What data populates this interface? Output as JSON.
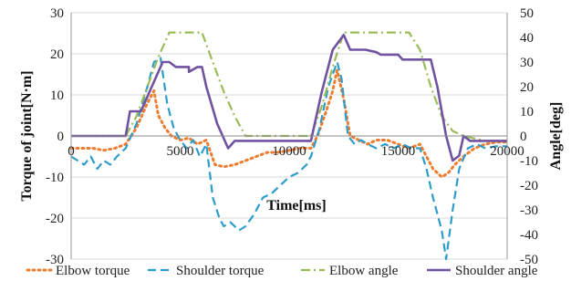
{
  "chart_data": {
    "type": "line",
    "xlabel": "Time[ms]",
    "ylabel_left": "Torque of joint[N·m]",
    "ylabel_right": "Angle[deg]",
    "xlim": [
      0,
      20000
    ],
    "ylim_left": [
      -30,
      30
    ],
    "ylim_right": [
      -50,
      50
    ],
    "xticks": [
      "0",
      "5000",
      "10000",
      "15000",
      "20000"
    ],
    "yticks_left": [
      "-30",
      "-20",
      "-10",
      "0",
      "10",
      "20",
      "30"
    ],
    "yticks_right": [
      "-50",
      "-40",
      "-30",
      "-20",
      "-10",
      "0",
      "10",
      "20",
      "30",
      "40",
      "50"
    ],
    "grid": "horizontal",
    "legend_position": "bottom",
    "series": [
      {
        "name": "Elbow torque",
        "axis": "left",
        "color": "#ED7D31",
        "style": "dotted",
        "x": [
          0,
          500,
          1000,
          1500,
          2000,
          2500,
          3000,
          3500,
          3800,
          4000,
          4300,
          4600,
          5000,
          5400,
          5800,
          6200,
          6600,
          7000,
          7500,
          8000,
          8500,
          9000,
          9500,
          10000,
          10500,
          11000,
          11300,
          11700,
          12000,
          12200,
          12500,
          12800,
          13200,
          13600,
          14000,
          14500,
          15000,
          15500,
          16000,
          16300,
          16600,
          17000,
          17300,
          17600,
          18000,
          18500,
          19000,
          19500,
          20000
        ],
        "y": [
          -3,
          -3,
          -3,
          -3.5,
          -3,
          -2,
          2,
          8,
          11,
          5,
          2,
          0,
          -1,
          -0.5,
          -2,
          -1,
          -7,
          -7.5,
          -7,
          -6,
          -5,
          -4,
          -4,
          -3.5,
          -3,
          -3,
          0,
          6,
          11,
          16,
          9,
          0,
          -1,
          -2,
          -1,
          -1,
          -2,
          -3,
          -2,
          -5,
          -8,
          -10,
          -9,
          -7,
          -5,
          -3,
          -2,
          -1.5,
          -1.5
        ]
      },
      {
        "name": "Shoulder torque",
        "axis": "left",
        "color": "#2E9CCA",
        "style": "dashed",
        "x": [
          0,
          300,
          600,
          900,
          1200,
          1500,
          1800,
          2100,
          2500,
          3000,
          3500,
          3800,
          4100,
          4400,
          4700,
          5000,
          5300,
          5600,
          5900,
          6200,
          6500,
          6800,
          7000,
          7300,
          7700,
          8000,
          8400,
          8800,
          9200,
          9600,
          10000,
          10400,
          10800,
          11000,
          11400,
          11800,
          12200,
          12400,
          12700,
          13000,
          13300,
          13600,
          14000,
          14400,
          14800,
          15200,
          15600,
          16000,
          16300,
          16600,
          17000,
          17200,
          17500,
          17800,
          18200,
          18600,
          19000,
          19500,
          20000
        ],
        "y": [
          -5,
          -6,
          -7,
          -5,
          -8,
          -6,
          -7,
          -5,
          -3,
          3,
          12,
          18,
          19,
          8,
          2,
          -1,
          -3,
          -1,
          -5,
          -2,
          -15,
          -20,
          -22,
          -21,
          -23,
          -22,
          -19,
          -15,
          -14,
          -12,
          -10,
          -9,
          -7,
          -5,
          2,
          12,
          18,
          14,
          0,
          -2,
          -1,
          -2,
          -3,
          -2,
          -3,
          -2,
          -3,
          -3,
          -8,
          -15,
          -23,
          -30,
          -18,
          -8,
          -3,
          -2,
          -3,
          -2.5,
          -2.5
        ]
      },
      {
        "name": "Elbow angle",
        "axis": "right",
        "color": "#9BBB59",
        "style": "dashdot",
        "x": [
          0,
          2500,
          3000,
          3500,
          4000,
          4500,
          5000,
          5500,
          6000,
          6500,
          7000,
          7500,
          8000,
          8500,
          10000,
          11000,
          11500,
          12000,
          12500,
          15500,
          16000,
          16500,
          17000,
          17500,
          18000,
          19000,
          20000
        ],
        "y": [
          0,
          0,
          8,
          20,
          32,
          42,
          42,
          42,
          42,
          30,
          18,
          8,
          0,
          0,
          0,
          0,
          12,
          28,
          42,
          42,
          35,
          20,
          8,
          2,
          0,
          -2,
          -2
        ]
      },
      {
        "name": "Shoulder angle",
        "axis": "right",
        "color": "#7052A0",
        "style": "solid",
        "x": [
          0,
          2500,
          2700,
          3200,
          3700,
          4200,
          4500,
          4800,
          4800,
          5400,
          5400,
          5800,
          6000,
          6200,
          6700,
          7200,
          7500,
          10500,
          11000,
          11500,
          12000,
          12500,
          12800,
          13200,
          13500,
          14000,
          14200,
          15000,
          15200,
          16500,
          16800,
          17200,
          17500,
          17800,
          18000,
          18300,
          20000
        ],
        "y": [
          0,
          0,
          10,
          10,
          20,
          30,
          30,
          28,
          28,
          28,
          26,
          28,
          28,
          20,
          5,
          -5,
          -2,
          -2,
          -2,
          18,
          35,
          41,
          35,
          35,
          35,
          34,
          33,
          33,
          31,
          31,
          20,
          0,
          -10,
          -8,
          0,
          -2,
          -2
        ]
      }
    ]
  }
}
